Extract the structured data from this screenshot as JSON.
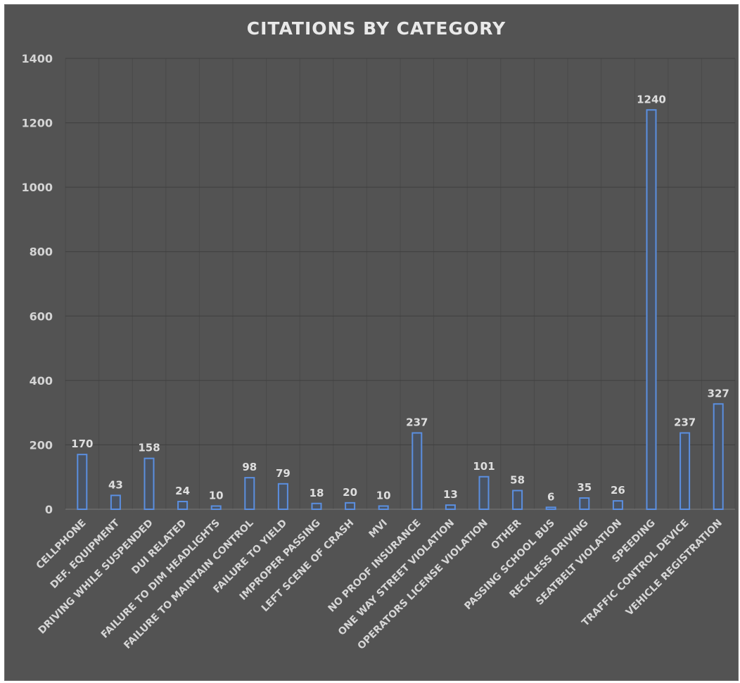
{
  "chart_data": {
    "type": "bar",
    "title": "CITATIONS BY CATEGORY",
    "xlabel": "",
    "ylabel": "",
    "ylim": [
      0,
      1400
    ],
    "yticks": [
      0,
      200,
      400,
      600,
      800,
      1000,
      1200,
      1400
    ],
    "grid": true,
    "legend": "none",
    "colors": {
      "background": "#535353",
      "bar_fill": "#4a5361",
      "bar_stroke": "#5b8fe0",
      "text": "#d6d6d6"
    },
    "categories": [
      "CELLPHONE",
      "DEF.  EQUIPMENT",
      "DRIVING WHILE SUSPENDED",
      "DUI RELATED",
      "FAILURE TO DIM HEADLIGHTS",
      "FAILURE TO MAINTAIN CONTROL",
      "FAILURE TO YIELD",
      "IMPROPER PASSING",
      "LEFT SCENE OF CRASH",
      "MVI",
      "NO PROOF INSURANCE",
      "ONE WAY STREET VIOLATION",
      "OPERATORS LICENSE VIOLATION",
      "OTHER",
      "PASSING SCHOOL BUS",
      "RECKLESS DRIVING",
      "SEATBELT VIOLATION",
      "SPEEDING",
      "TRAFFIC CONTROL DEVICE",
      "VEHICLE REGISTRATION"
    ],
    "values": [
      170,
      43,
      158,
      24,
      10,
      98,
      79,
      18,
      20,
      10,
      237,
      13,
      101,
      58,
      6,
      35,
      26,
      1240,
      237,
      327
    ]
  }
}
